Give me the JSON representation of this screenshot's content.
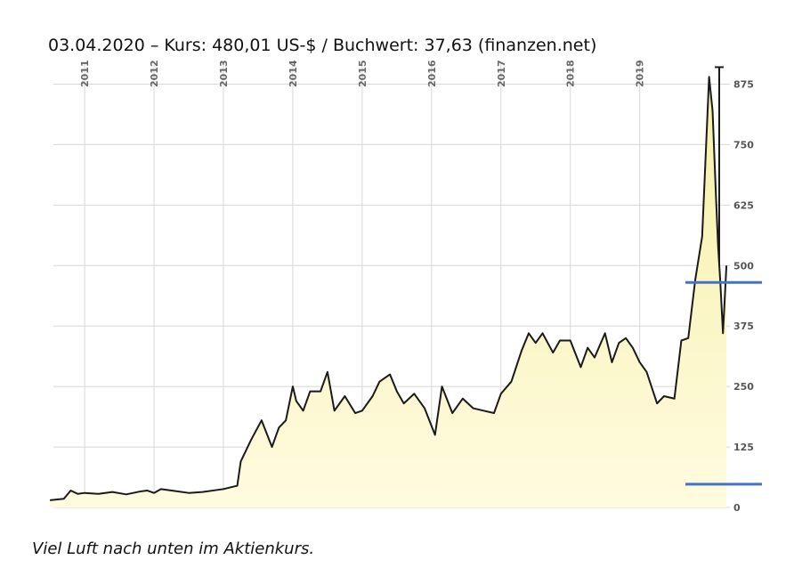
{
  "title": "03.04.2020 – Kurs: 480,01 US-$ / Buchwert: 37,63 (finanzen.net)",
  "caption": "Viel Luft nach unten im Aktienkurs.",
  "colors": {
    "fill_top": "#f6f0a6",
    "fill_bottom": "#fffbe0",
    "line": "#1a1a1a",
    "marker": "#4472c4",
    "grid": "#d8d8d8"
  },
  "chart_data": {
    "type": "area",
    "xlim": [
      2010.55,
      2020.3
    ],
    "ylim": [
      0,
      920
    ],
    "years": [
      "2011",
      "2012",
      "2013",
      "2014",
      "2015",
      "2016",
      "2017",
      "2018",
      "2019"
    ],
    "yticks": [
      {
        "value": 0,
        "label": "0"
      },
      {
        "value": 125,
        "label": "125"
      },
      {
        "value": 250,
        "label": "250"
      },
      {
        "value": 375,
        "label": "375"
      },
      {
        "value": 500,
        "label": "500"
      },
      {
        "value": 625,
        "label": "625"
      },
      {
        "value": 750,
        "label": "750"
      },
      {
        "value": 875,
        "label": "875"
      }
    ],
    "grid": true,
    "series": [
      {
        "x": [
          2010.5,
          2010.7,
          2010.8,
          2010.9,
          2011.0,
          2011.2,
          2011.4,
          2011.6,
          2011.8,
          2011.9,
          2012.0,
          2012.1,
          2012.3,
          2012.5,
          2012.7,
          2012.9,
          2013.0,
          2013.2,
          2013.25,
          2013.3,
          2013.4,
          2013.55,
          2013.7,
          2013.8,
          2013.9,
          2014.0,
          2014.05,
          2014.15,
          2014.25,
          2014.4,
          2014.5,
          2014.6,
          2014.75,
          2014.9,
          2015.0,
          2015.15,
          2015.25,
          2015.4,
          2015.5,
          2015.6,
          2015.75,
          2015.9,
          2016.05,
          2016.15,
          2016.3,
          2016.45,
          2016.6,
          2016.75,
          2016.9,
          2017.0,
          2017.15,
          2017.3,
          2017.4,
          2017.5,
          2017.6,
          2017.75,
          2017.85,
          2018.0,
          2018.15,
          2018.25,
          2018.35,
          2018.5,
          2018.6,
          2018.7,
          2018.8,
          2018.9,
          2019.0,
          2019.1,
          2019.25,
          2019.35,
          2019.5,
          2019.6,
          2019.7,
          2019.8,
          2019.9,
          2020.0,
          2020.05,
          2020.1,
          2020.13,
          2020.16,
          2020.2,
          2020.25
        ],
        "y": [
          15,
          18,
          35,
          28,
          30,
          28,
          32,
          27,
          33,
          35,
          30,
          38,
          34,
          30,
          32,
          36,
          38,
          45,
          95,
          110,
          140,
          180,
          125,
          165,
          180,
          250,
          220,
          200,
          240,
          240,
          280,
          200,
          230,
          195,
          200,
          230,
          260,
          275,
          240,
          215,
          235,
          205,
          150,
          250,
          195,
          225,
          205,
          200,
          195,
          235,
          260,
          325,
          360,
          340,
          360,
          320,
          345,
          345,
          290,
          330,
          310,
          360,
          300,
          340,
          350,
          330,
          300,
          280,
          215,
          230,
          225,
          345,
          350,
          470,
          560,
          890,
          820,
          640,
          540,
          470,
          360,
          500
        ]
      }
    ],
    "annotations": [
      {
        "type": "hline",
        "value": 465
      },
      {
        "type": "hline",
        "value": 48
      },
      {
        "type": "range-marker",
        "low": 500,
        "high": 910
      }
    ]
  }
}
